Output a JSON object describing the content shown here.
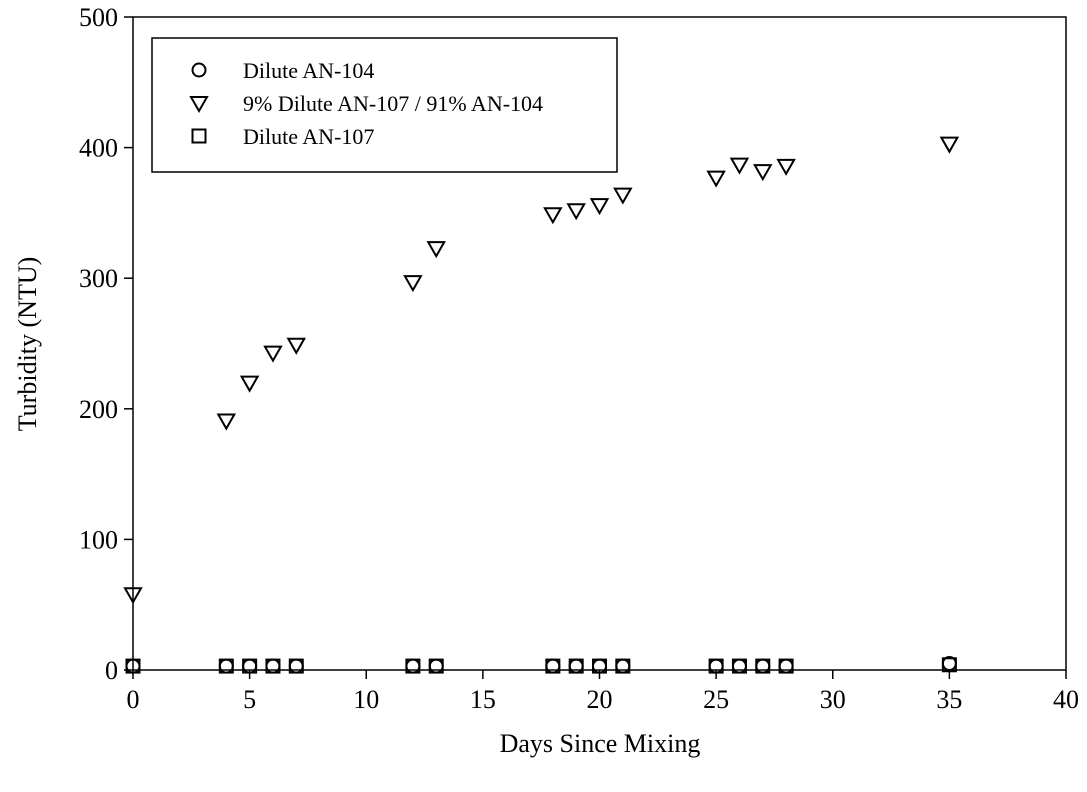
{
  "chart_data": {
    "type": "scatter",
    "title": "",
    "xlabel": "Days Since Mixing",
    "ylabel": "Turbidity (NTU)",
    "xlim": [
      0,
      40
    ],
    "ylim": [
      0,
      500
    ],
    "xticks": [
      0,
      5,
      10,
      15,
      20,
      25,
      30,
      35,
      40
    ],
    "yticks": [
      0,
      100,
      200,
      300,
      400,
      500
    ],
    "xtick_labels": [
      "0",
      "5",
      "10",
      "15",
      "20",
      "25",
      "30",
      "35",
      "40"
    ],
    "ytick_labels": [
      "0",
      "100",
      "200",
      "300",
      "400",
      "500"
    ],
    "grid": false,
    "legend_position": "top-left",
    "series": [
      {
        "name": "Dilute AN-104",
        "marker": "circle",
        "x": [
          0,
          4,
          5,
          6,
          7,
          12,
          13,
          18,
          19,
          20,
          21,
          25,
          26,
          27,
          28,
          35
        ],
        "y": [
          3,
          3,
          3,
          3,
          3,
          3,
          3,
          3,
          3,
          3,
          3,
          3,
          3,
          3,
          3,
          5
        ]
      },
      {
        "name": "9% Dilute AN-107 / 91% AN-104",
        "marker": "triangle-down",
        "x": [
          0,
          4,
          5,
          6,
          7,
          12,
          13,
          18,
          19,
          20,
          21,
          25,
          26,
          27,
          28,
          35
        ],
        "y": [
          58,
          191,
          220,
          243,
          249,
          297,
          323,
          349,
          352,
          356,
          364,
          377,
          387,
          382,
          386,
          403
        ]
      },
      {
        "name": "Dilute AN-107",
        "marker": "square",
        "x": [
          0,
          4,
          5,
          6,
          7,
          12,
          13,
          18,
          19,
          20,
          21,
          25,
          26,
          27,
          28,
          35
        ],
        "y": [
          3,
          3,
          3,
          3,
          3,
          3,
          3,
          3,
          3,
          3,
          3,
          3,
          3,
          3,
          3,
          4
        ]
      }
    ]
  }
}
